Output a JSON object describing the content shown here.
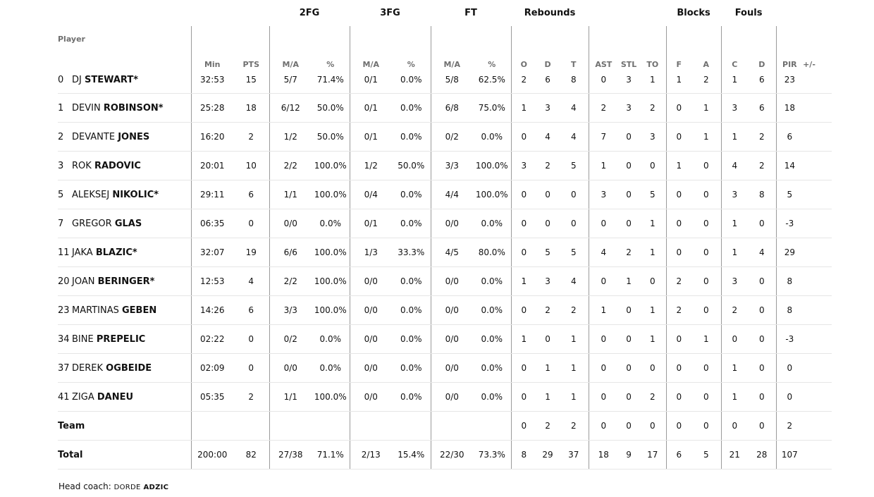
{
  "groups": {
    "fg2": "2FG",
    "fg3": "3FG",
    "ft": "FT",
    "rebounds": "Rebounds",
    "blocks": "Blocks",
    "fouls": "Fouls"
  },
  "headers": {
    "player": "Player",
    "min": "Min",
    "pts": "PTS",
    "fg2_ma": "M/A",
    "fg2_pct": "%",
    "fg3_ma": "M/A",
    "fg3_pct": "%",
    "ft_ma": "M/A",
    "ft_pct": "%",
    "reb_o": "O",
    "reb_d": "D",
    "reb_t": "T",
    "ast": "AST",
    "stl": "STL",
    "to": "TO",
    "blk_f": "F",
    "blk_a": "A",
    "foul_c": "C",
    "foul_d": "D",
    "pir": "PIR",
    "pm": "+/-"
  },
  "players": [
    {
      "num": "0",
      "first": "DJ",
      "last": "STEWART*",
      "min": "32:53",
      "pts": "15",
      "fg2_ma": "5/7",
      "fg2_pct": "71.4%",
      "fg3_ma": "0/1",
      "fg3_pct": "0.0%",
      "ft_ma": "5/8",
      "ft_pct": "62.5%",
      "reb_o": "2",
      "reb_d": "6",
      "reb_t": "8",
      "ast": "0",
      "stl": "3",
      "to": "1",
      "blk_f": "1",
      "blk_a": "2",
      "foul_c": "1",
      "foul_d": "6",
      "pir": "23",
      "pm": ""
    },
    {
      "num": "1",
      "first": "DEVIN",
      "last": "ROBINSON*",
      "min": "25:28",
      "pts": "18",
      "fg2_ma": "6/12",
      "fg2_pct": "50.0%",
      "fg3_ma": "0/1",
      "fg3_pct": "0.0%",
      "ft_ma": "6/8",
      "ft_pct": "75.0%",
      "reb_o": "1",
      "reb_d": "3",
      "reb_t": "4",
      "ast": "2",
      "stl": "3",
      "to": "2",
      "blk_f": "0",
      "blk_a": "1",
      "foul_c": "3",
      "foul_d": "6",
      "pir": "18",
      "pm": ""
    },
    {
      "num": "2",
      "first": "DEVANTE",
      "last": "JONES",
      "min": "16:20",
      "pts": "2",
      "fg2_ma": "1/2",
      "fg2_pct": "50.0%",
      "fg3_ma": "0/1",
      "fg3_pct": "0.0%",
      "ft_ma": "0/2",
      "ft_pct": "0.0%",
      "reb_o": "0",
      "reb_d": "4",
      "reb_t": "4",
      "ast": "7",
      "stl": "0",
      "to": "3",
      "blk_f": "0",
      "blk_a": "1",
      "foul_c": "1",
      "foul_d": "2",
      "pir": "6",
      "pm": ""
    },
    {
      "num": "3",
      "first": "ROK",
      "last": "RADOVIC",
      "min": "20:01",
      "pts": "10",
      "fg2_ma": "2/2",
      "fg2_pct": "100.0%",
      "fg3_ma": "1/2",
      "fg3_pct": "50.0%",
      "ft_ma": "3/3",
      "ft_pct": "100.0%",
      "reb_o": "3",
      "reb_d": "2",
      "reb_t": "5",
      "ast": "1",
      "stl": "0",
      "to": "0",
      "blk_f": "1",
      "blk_a": "0",
      "foul_c": "4",
      "foul_d": "2",
      "pir": "14",
      "pm": ""
    },
    {
      "num": "5",
      "first": "ALEKSEJ",
      "last": "NIKOLIC*",
      "min": "29:11",
      "pts": "6",
      "fg2_ma": "1/1",
      "fg2_pct": "100.0%",
      "fg3_ma": "0/4",
      "fg3_pct": "0.0%",
      "ft_ma": "4/4",
      "ft_pct": "100.0%",
      "reb_o": "0",
      "reb_d": "0",
      "reb_t": "0",
      "ast": "3",
      "stl": "0",
      "to": "5",
      "blk_f": "0",
      "blk_a": "0",
      "foul_c": "3",
      "foul_d": "8",
      "pir": "5",
      "pm": ""
    },
    {
      "num": "7",
      "first": "GREGOR",
      "last": "GLAS",
      "min": "06:35",
      "pts": "0",
      "fg2_ma": "0/0",
      "fg2_pct": "0.0%",
      "fg3_ma": "0/1",
      "fg3_pct": "0.0%",
      "ft_ma": "0/0",
      "ft_pct": "0.0%",
      "reb_o": "0",
      "reb_d": "0",
      "reb_t": "0",
      "ast": "0",
      "stl": "0",
      "to": "1",
      "blk_f": "0",
      "blk_a": "0",
      "foul_c": "1",
      "foul_d": "0",
      "pir": "-3",
      "pm": ""
    },
    {
      "num": "11",
      "first": "JAKA",
      "last": "BLAZIC*",
      "min": "32:07",
      "pts": "19",
      "fg2_ma": "6/6",
      "fg2_pct": "100.0%",
      "fg3_ma": "1/3",
      "fg3_pct": "33.3%",
      "ft_ma": "4/5",
      "ft_pct": "80.0%",
      "reb_o": "0",
      "reb_d": "5",
      "reb_t": "5",
      "ast": "4",
      "stl": "2",
      "to": "1",
      "blk_f": "0",
      "blk_a": "0",
      "foul_c": "1",
      "foul_d": "4",
      "pir": "29",
      "pm": ""
    },
    {
      "num": "20",
      "first": "JOAN",
      "last": "BERINGER*",
      "min": "12:53",
      "pts": "4",
      "fg2_ma": "2/2",
      "fg2_pct": "100.0%",
      "fg3_ma": "0/0",
      "fg3_pct": "0.0%",
      "ft_ma": "0/0",
      "ft_pct": "0.0%",
      "reb_o": "1",
      "reb_d": "3",
      "reb_t": "4",
      "ast": "0",
      "stl": "1",
      "to": "0",
      "blk_f": "2",
      "blk_a": "0",
      "foul_c": "3",
      "foul_d": "0",
      "pir": "8",
      "pm": ""
    },
    {
      "num": "23",
      "first": "MARTINAS",
      "last": "GEBEN",
      "min": "14:26",
      "pts": "6",
      "fg2_ma": "3/3",
      "fg2_pct": "100.0%",
      "fg3_ma": "0/0",
      "fg3_pct": "0.0%",
      "ft_ma": "0/0",
      "ft_pct": "0.0%",
      "reb_o": "0",
      "reb_d": "2",
      "reb_t": "2",
      "ast": "1",
      "stl": "0",
      "to": "1",
      "blk_f": "2",
      "blk_a": "0",
      "foul_c": "2",
      "foul_d": "0",
      "pir": "8",
      "pm": ""
    },
    {
      "num": "34",
      "first": "BINE",
      "last": "PREPELIC",
      "min": "02:22",
      "pts": "0",
      "fg2_ma": "0/2",
      "fg2_pct": "0.0%",
      "fg3_ma": "0/0",
      "fg3_pct": "0.0%",
      "ft_ma": "0/0",
      "ft_pct": "0.0%",
      "reb_o": "1",
      "reb_d": "0",
      "reb_t": "1",
      "ast": "0",
      "stl": "0",
      "to": "1",
      "blk_f": "0",
      "blk_a": "1",
      "foul_c": "0",
      "foul_d": "0",
      "pir": "-3",
      "pm": ""
    },
    {
      "num": "37",
      "first": "DEREK",
      "last": "OGBEIDE",
      "min": "02:09",
      "pts": "0",
      "fg2_ma": "0/0",
      "fg2_pct": "0.0%",
      "fg3_ma": "0/0",
      "fg3_pct": "0.0%",
      "ft_ma": "0/0",
      "ft_pct": "0.0%",
      "reb_o": "0",
      "reb_d": "1",
      "reb_t": "1",
      "ast": "0",
      "stl": "0",
      "to": "0",
      "blk_f": "0",
      "blk_a": "0",
      "foul_c": "1",
      "foul_d": "0",
      "pir": "0",
      "pm": ""
    },
    {
      "num": "41",
      "first": "ZIGA",
      "last": "DANEU",
      "min": "05:35",
      "pts": "2",
      "fg2_ma": "1/1",
      "fg2_pct": "100.0%",
      "fg3_ma": "0/0",
      "fg3_pct": "0.0%",
      "ft_ma": "0/0",
      "ft_pct": "0.0%",
      "reb_o": "0",
      "reb_d": "1",
      "reb_t": "1",
      "ast": "0",
      "stl": "0",
      "to": "2",
      "blk_f": "0",
      "blk_a": "0",
      "foul_c": "1",
      "foul_d": "0",
      "pir": "0",
      "pm": ""
    }
  ],
  "team_row": {
    "label": "Team",
    "min": "",
    "pts": "",
    "fg2_ma": "",
    "fg2_pct": "",
    "fg3_ma": "",
    "fg3_pct": "",
    "ft_ma": "",
    "ft_pct": "",
    "reb_o": "0",
    "reb_d": "2",
    "reb_t": "2",
    "ast": "0",
    "stl": "0",
    "to": "0",
    "blk_f": "0",
    "blk_a": "0",
    "foul_c": "0",
    "foul_d": "0",
    "pir": "2",
    "pm": ""
  },
  "total_row": {
    "label": "Total",
    "min": "200:00",
    "pts": "82",
    "fg2_ma": "27/38",
    "fg2_pct": "71.1%",
    "fg3_ma": "2/13",
    "fg3_pct": "15.4%",
    "ft_ma": "22/30",
    "ft_pct": "73.3%",
    "reb_o": "8",
    "reb_d": "29",
    "reb_t": "37",
    "ast": "18",
    "stl": "9",
    "to": "17",
    "blk_f": "6",
    "blk_a": "5",
    "foul_c": "21",
    "foul_d": "28",
    "pir": "107",
    "pm": ""
  },
  "coach": {
    "label": "Head coach:",
    "first": "DORDE",
    "last": "ADZIC"
  }
}
